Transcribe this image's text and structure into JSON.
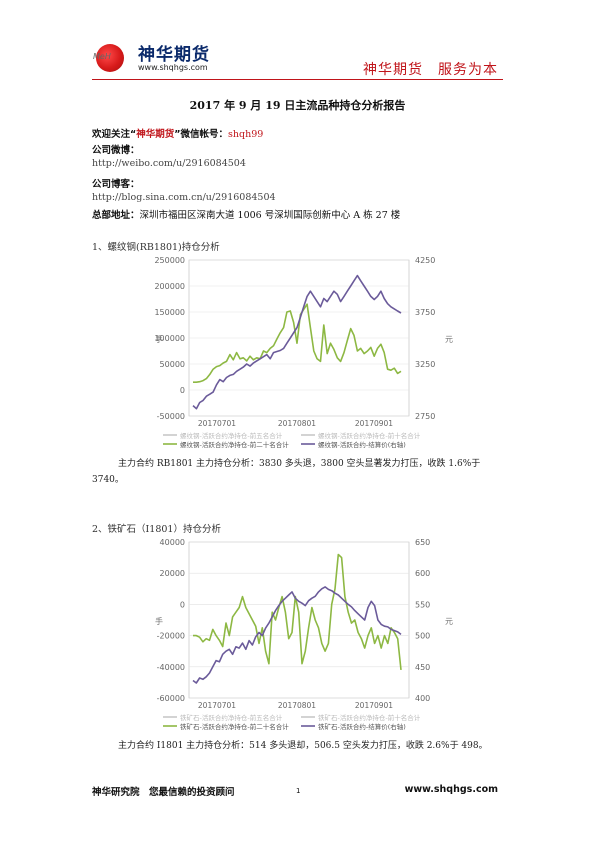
{
  "header": {
    "logo_cn": "神华期货",
    "logo_mark": "MeH",
    "logo_url": "www.shqhgs.com",
    "slogan": "神华期货　服务为本"
  },
  "doc": {
    "title": "2017 年 9 月 19 日主流品种持仓分析报告",
    "follow_prefix": "欢迎关注“",
    "follow_brand": "神华期货",
    "follow_mid": "”微信帐号：",
    "follow_id": "shqh99",
    "weibo_label": "公司微博：",
    "weibo_url": "http://weibo.com/u/2916084504",
    "blog_label": "公司博客：",
    "blog_url": "http://blog.sina.com.cn/u/2916084504",
    "address_label": "总部地址：",
    "address": "深圳市福田区深南大道 1006 号深圳国际创新中心 A 栋 27 楼"
  },
  "sections": [
    {
      "heading": "1、螺纹钢(RB1801)持仓分析",
      "paragraph": "主力合约 RB1801 主力持仓分析：3830 多头退，3800 空头显著发力打压，收跌 1.6%于 3740。"
    },
    {
      "heading": "2、铁矿石（I1801）持仓分析",
      "paragraph": "主力合约 I1801 主力持仓分析：514 多头退却，506.5 空头发力打压，收跌 2.6%于 498。"
    }
  ],
  "chart_data": [
    {
      "type": "line",
      "ylabel_left": "手",
      "ylabel_right": "元",
      "ylim": [
        -50000,
        250000
      ],
      "yticks": [
        "250000",
        "200000",
        "150000",
        "100000",
        "50000",
        "0",
        "-50000"
      ],
      "y2lim": [
        2750,
        4250
      ],
      "y2ticks": [
        "4250",
        "3750",
        "3250",
        "2750"
      ],
      "y2ticks_minor": [
        "3250",
        "3000"
      ],
      "xticks": [
        "20170701",
        "20170801",
        "20170901"
      ],
      "legend": [
        "螺纹钢-活跃合约净持仓-前五名合计",
        "螺纹钢-活跃合约净持仓-前十名合计",
        "螺纹钢-活跃合约净持仓-前二十名合计",
        "螺纹钢-活跃合约-结算价(右轴)"
      ],
      "colors": {
        "position": "#8db843",
        "price": "#6b5b9a"
      },
      "series": [
        {
          "name": "螺纹钢-活跃合约净持仓-前二十名合计",
          "axis": "left",
          "values": [
            15000,
            15000,
            16000,
            18000,
            22000,
            30000,
            40000,
            45000,
            47000,
            52000,
            55000,
            68000,
            58000,
            72000,
            60000,
            62000,
            56000,
            65000,
            58000,
            62000,
            60000,
            75000,
            72000,
            80000,
            85000,
            98000,
            110000,
            120000,
            150000,
            152000,
            130000,
            90000,
            145000,
            155000,
            165000,
            120000,
            75000,
            60000,
            55000,
            125000,
            70000,
            90000,
            78000,
            62000,
            55000,
            72000,
            95000,
            118000,
            105000,
            75000,
            80000,
            70000,
            75000,
            82000,
            65000,
            80000,
            88000,
            72000,
            40000,
            38000,
            42000,
            32000,
            36000
          ]
        },
        {
          "name": "螺纹钢-活跃合约-结算价(右轴)",
          "axis": "right",
          "values": [
            2850,
            2820,
            2880,
            2900,
            2940,
            2960,
            2980,
            3050,
            3100,
            3080,
            3120,
            3140,
            3150,
            3180,
            3200,
            3220,
            3250,
            3230,
            3260,
            3280,
            3300,
            3320,
            3340,
            3300,
            3360,
            3370,
            3380,
            3400,
            3450,
            3500,
            3550,
            3600,
            3700,
            3800,
            3900,
            3950,
            3900,
            3850,
            3800,
            3880,
            3850,
            3900,
            3950,
            3920,
            3850,
            3900,
            3950,
            4000,
            4050,
            4100,
            4050,
            4000,
            3950,
            3900,
            3870,
            3900,
            3950,
            3880,
            3830,
            3800,
            3780,
            3760,
            3740
          ]
        }
      ]
    },
    {
      "type": "line",
      "ylabel_left": "手",
      "ylabel_right": "元",
      "ylim": [
        -60000,
        40000
      ],
      "yticks": [
        "40000",
        "20000",
        "0",
        "-20000",
        "-40000",
        "-60000"
      ],
      "y2lim": [
        400,
        650
      ],
      "y2ticks": [
        "650",
        "600",
        "550",
        "500",
        "450",
        "400"
      ],
      "xticks": [
        "20170701",
        "20170801",
        "20170901"
      ],
      "legend": [
        "铁矿石-活跃合约净持仓-前五名合计",
        "铁矿石-活跃合约净持仓-前十名合计",
        "铁矿石-活跃合约净持仓-前二十名合计",
        "铁矿石-活跃合约-结算价(右轴)"
      ],
      "colors": {
        "position": "#8db843",
        "price": "#6b5b9a"
      },
      "series": [
        {
          "name": "铁矿石-活跃合约净持仓-前二十名合计",
          "axis": "left",
          "values": [
            -20000,
            -20000,
            -21000,
            -24000,
            -22000,
            -23000,
            -16000,
            -20000,
            -23000,
            -27000,
            -12000,
            -20000,
            -8000,
            -5000,
            -2000,
            5000,
            -2000,
            -6000,
            -10000,
            -14000,
            -25000,
            -15000,
            -30000,
            -38000,
            -5000,
            -10000,
            -2000,
            5000,
            -5000,
            -22000,
            -18000,
            5000,
            -5000,
            -38000,
            -30000,
            -15000,
            -2000,
            -10000,
            -15000,
            -25000,
            -30000,
            -25000,
            0,
            10000,
            32000,
            30000,
            5000,
            -5000,
            -12000,
            -10000,
            -18000,
            -22000,
            -28000,
            -20000,
            -15000,
            -25000,
            -20000,
            -28000,
            -20000,
            -25000,
            -15000,
            -18000,
            -22000,
            -42000
          ]
        },
        {
          "name": "铁矿石-活跃合约-结算价(右轴)",
          "axis": "right",
          "values": [
            428,
            424,
            432,
            430,
            434,
            440,
            450,
            460,
            458,
            470,
            475,
            478,
            470,
            482,
            480,
            488,
            478,
            492,
            485,
            498,
            505,
            500,
            512,
            520,
            530,
            540,
            548,
            555,
            560,
            565,
            570,
            560,
            555,
            552,
            548,
            556,
            560,
            563,
            570,
            575,
            578,
            574,
            572,
            568,
            565,
            560,
            555,
            550,
            546,
            540,
            535,
            530,
            525,
            545,
            555,
            548,
            525,
            518,
            515,
            514,
            510,
            508,
            506,
            502
          ]
        }
      ]
    }
  ],
  "footer": {
    "left": "神华研究院　您最信赖的投资顾问",
    "page": "1",
    "right": "www.shqhgs.com"
  }
}
